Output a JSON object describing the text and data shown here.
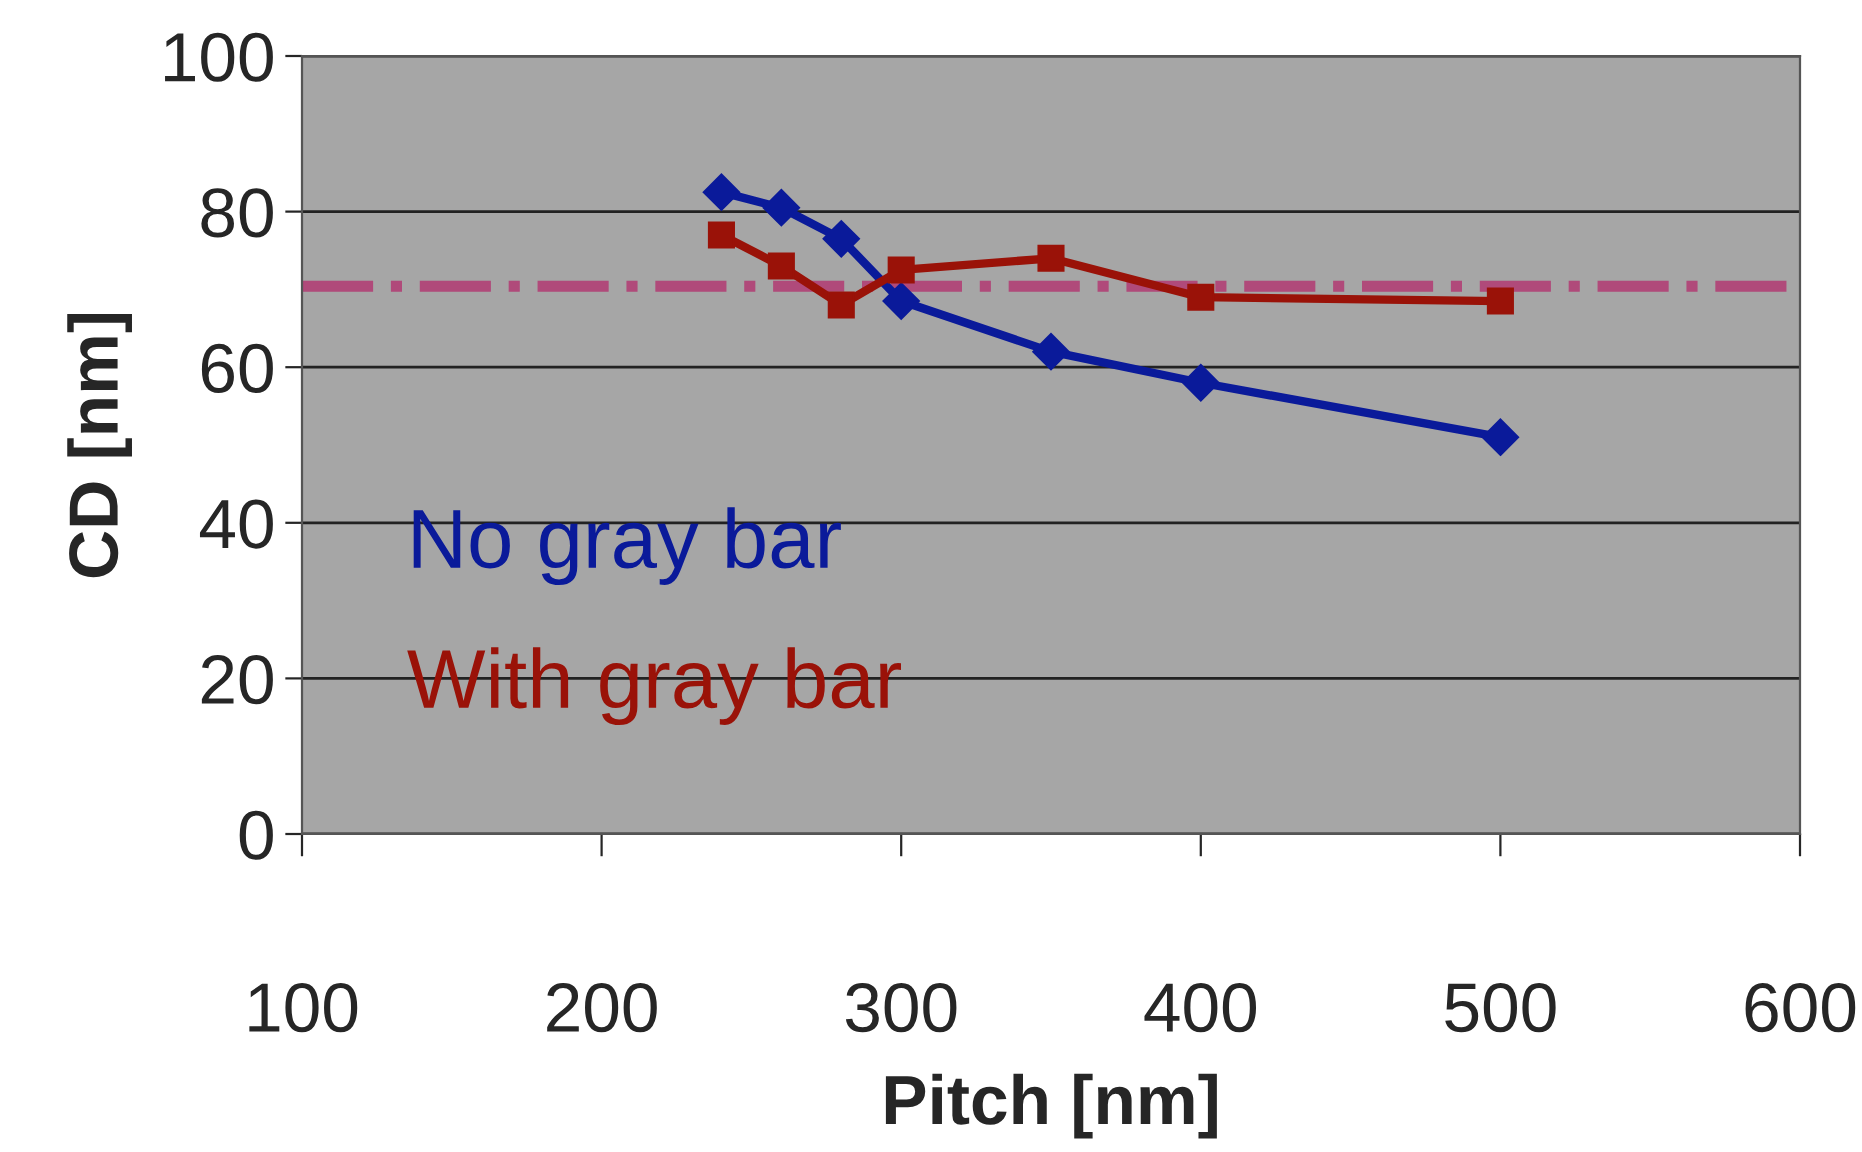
{
  "chart_data": {
    "type": "line",
    "xlabel": "Pitch [nm]",
    "ylabel": "CD [nm]",
    "xlim": [
      100,
      600
    ],
    "xticks": [
      100,
      200,
      300,
      400,
      500,
      600
    ],
    "ylim": [
      0,
      100
    ],
    "yticks": [
      0,
      20,
      40,
      60,
      80,
      100
    ],
    "grid": "y",
    "legend": "left",
    "ref_lines": [
      {
        "axis": "y",
        "value": 70.4,
        "color": "#b04a7a",
        "line_style": "dashdot"
      }
    ],
    "series": [
      {
        "name": "No gray bar",
        "color": "#0a1a9a",
        "marker": "diamond",
        "x": [
          240,
          260,
          280,
          300,
          350,
          400,
          500
        ],
        "values": [
          82.5,
          80.5,
          76.5,
          68.5,
          62,
          58,
          51
        ]
      },
      {
        "name": "With gray bar",
        "color": "#9a1208",
        "marker": "square",
        "x": [
          240,
          260,
          280,
          300,
          350,
          400,
          500
        ],
        "values": [
          77,
          73,
          68,
          72.5,
          74,
          69,
          68.5
        ]
      }
    ]
  }
}
